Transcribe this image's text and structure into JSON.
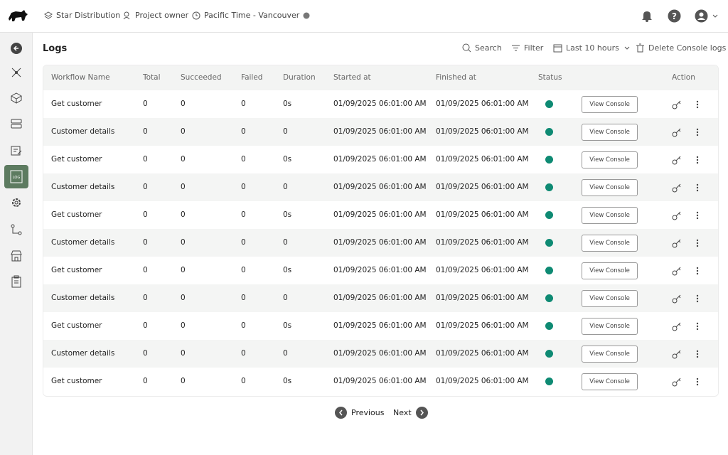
{
  "header": {
    "org": "Star Distribution",
    "role": "Project owner",
    "timezone": "Pacific Time - Vancouver"
  },
  "page": {
    "title": "Logs"
  },
  "toolbar": {
    "search": "Search",
    "filter": "Filter",
    "range": "Last 10 hours",
    "delete": "Delete Console logs"
  },
  "table": {
    "columns": [
      "Workflow Name",
      "Total",
      "Succeeded",
      "Failed",
      "Duration",
      "Started at",
      "Finished at",
      "Status",
      "Action"
    ],
    "button_label": "View Console",
    "rows": [
      [
        "Get customer",
        0,
        0,
        0,
        "0s",
        "01/09/2025 06:01:00 AM",
        "01/09/2025 06:01:00 AM"
      ],
      [
        "Customer details",
        0,
        0,
        0,
        "0",
        "01/09/2025 06:01:00 AM",
        "01/09/2025 06:01:00 AM"
      ],
      [
        "Get customer",
        0,
        0,
        0,
        "0s",
        "01/09/2025 06:01:00 AM",
        "01/09/2025 06:01:00 AM"
      ],
      [
        "Customer details",
        0,
        0,
        0,
        "0",
        "01/09/2025 06:01:00 AM",
        "01/09/2025 06:01:00 AM"
      ],
      [
        "Get customer",
        0,
        0,
        0,
        "0s",
        "01/09/2025 06:01:00 AM",
        "01/09/2025 06:01:00 AM"
      ],
      [
        "Customer details",
        0,
        0,
        0,
        "0",
        "01/09/2025 06:01:00 AM",
        "01/09/2025 06:01:00 AM"
      ],
      [
        "Get customer",
        0,
        0,
        0,
        "0s",
        "01/09/2025 06:01:00 AM",
        "01/09/2025 06:01:00 AM"
      ],
      [
        "Customer details",
        0,
        0,
        0,
        "0",
        "01/09/2025 06:01:00 AM",
        "01/09/2025 06:01:00 AM"
      ],
      [
        "Get customer",
        0,
        0,
        0,
        "0s",
        "01/09/2025 06:01:00 AM",
        "01/09/2025 06:01:00 AM"
      ],
      [
        "Customer details",
        0,
        0,
        0,
        "0",
        "01/09/2025 06:01:00 AM",
        "01/09/2025 06:01:00 AM"
      ],
      [
        "Get customer",
        0,
        0,
        0,
        "0s",
        "01/09/2025 06:01:00 AM",
        "01/09/2025 06:01:00 AM"
      ]
    ]
  },
  "pagination": {
    "previous": "Previous",
    "next": "Next"
  }
}
